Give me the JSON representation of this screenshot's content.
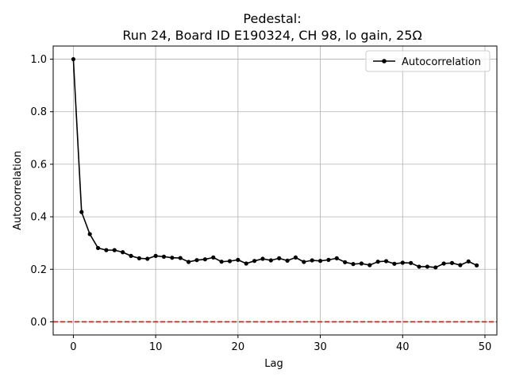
{
  "chart_data": {
    "type": "line",
    "title_line1": "Pedestal:",
    "title_line2": "Run 24, Board ID E190324, CH 98, lo gain, 25Ω",
    "xlabel": "Lag",
    "ylabel": "Autocorrelation",
    "xlim": [
      -2.45,
      51.45
    ],
    "ylim": [
      -0.05,
      1.05
    ],
    "xticks": [
      0,
      10,
      20,
      30,
      40,
      50
    ],
    "yticks": [
      0.0,
      0.2,
      0.4,
      0.6,
      0.8,
      1.0
    ],
    "xtick_labels": [
      "0",
      "10",
      "20",
      "30",
      "40",
      "50"
    ],
    "ytick_labels": [
      "0.0",
      "0.2",
      "0.4",
      "0.6",
      "0.8",
      "1.0"
    ],
    "grid": true,
    "legend_position": "top-right",
    "series": [
      {
        "name": "Autocorrelation",
        "color": "#000000",
        "marker": "circle",
        "x": [
          0,
          1,
          2,
          3,
          4,
          5,
          6,
          7,
          8,
          9,
          10,
          11,
          12,
          13,
          14,
          15,
          16,
          17,
          18,
          19,
          20,
          21,
          22,
          23,
          24,
          25,
          26,
          27,
          28,
          29,
          30,
          31,
          32,
          33,
          34,
          35,
          36,
          37,
          38,
          39,
          40,
          41,
          42,
          43,
          44,
          45,
          46,
          47,
          48,
          49
        ],
        "y": [
          1.0,
          0.418,
          0.334,
          0.281,
          0.273,
          0.273,
          0.265,
          0.251,
          0.242,
          0.24,
          0.251,
          0.248,
          0.244,
          0.243,
          0.228,
          0.235,
          0.238,
          0.245,
          0.229,
          0.231,
          0.236,
          0.222,
          0.232,
          0.24,
          0.234,
          0.242,
          0.233,
          0.245,
          0.228,
          0.234,
          0.232,
          0.236,
          0.242,
          0.227,
          0.22,
          0.222,
          0.216,
          0.229,
          0.231,
          0.221,
          0.225,
          0.224,
          0.21,
          0.21,
          0.207,
          0.222,
          0.224,
          0.216,
          0.23,
          0.215
        ]
      }
    ],
    "reference_line": {
      "y": 0.0,
      "color": "#ff0000",
      "style": "dashed"
    }
  }
}
